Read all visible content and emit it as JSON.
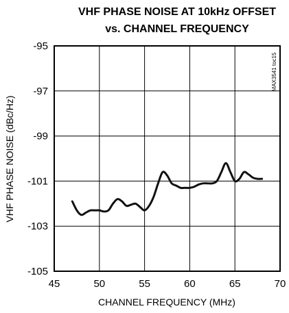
{
  "chart_data": {
    "type": "line",
    "title_lines": [
      "VHF PHASE NOISE AT 10kHz OFFSET",
      "vs. CHANNEL FREQUENCY"
    ],
    "xlabel": "CHANNEL FREQUENCY (MHz)",
    "ylabel": "VHF PHASE NOISE (dBc/Hz)",
    "xlim": [
      45,
      70
    ],
    "ylim": [
      -105,
      -95
    ],
    "x_ticks": [
      "45",
      "50",
      "55",
      "60",
      "65",
      "70"
    ],
    "y_ticks": [
      "-95",
      "-97",
      "-99",
      "-101",
      "-103",
      "-105"
    ],
    "grid": true,
    "watermark": "MAX3541 toc15",
    "series": [
      {
        "x": [
          47.0,
          47.5,
          48.0,
          48.5,
          49.0,
          49.5,
          50.0,
          50.5,
          51.0,
          51.5,
          52.0,
          52.5,
          53.0,
          53.5,
          54.0,
          54.5,
          55.0,
          55.5,
          56.0,
          56.5,
          57.0,
          57.5,
          58.0,
          58.5,
          59.0,
          59.5,
          60.0,
          60.5,
          61.0,
          61.5,
          62.0,
          62.5,
          63.0,
          63.5,
          64.0,
          64.5,
          65.0,
          65.5,
          66.0,
          66.5,
          67.0,
          67.5,
          68.0
        ],
        "values": [
          -101.9,
          -102.3,
          -102.5,
          -102.4,
          -102.3,
          -102.3,
          -102.3,
          -102.35,
          -102.3,
          -102.0,
          -101.8,
          -101.9,
          -102.1,
          -102.05,
          -102.0,
          -102.15,
          -102.3,
          -102.1,
          -101.7,
          -101.1,
          -100.6,
          -100.75,
          -101.1,
          -101.2,
          -101.3,
          -101.3,
          -101.3,
          -101.25,
          -101.15,
          -101.1,
          -101.1,
          -101.1,
          -101.0,
          -100.6,
          -100.2,
          -100.6,
          -101.0,
          -100.9,
          -100.6,
          -100.7,
          -100.85,
          -100.9,
          -100.9
        ]
      }
    ]
  }
}
